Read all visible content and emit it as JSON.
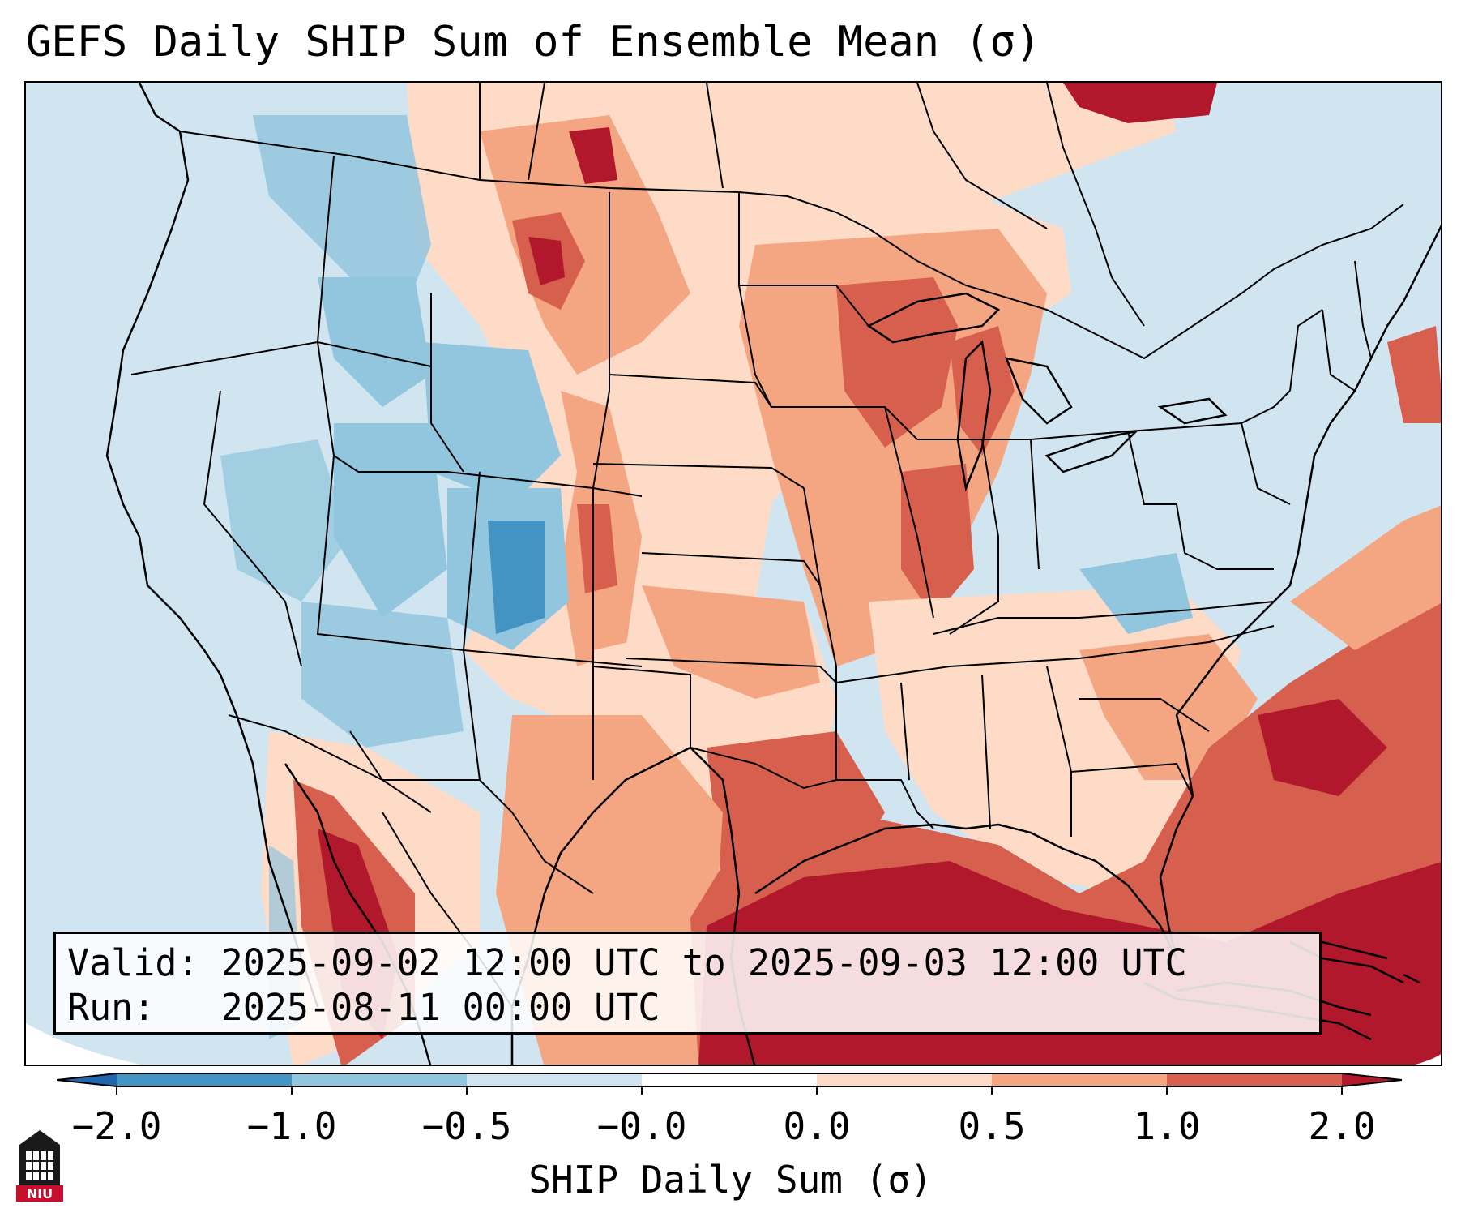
{
  "title": "GEFS Daily SHIP Sum of Ensemble Mean (σ)",
  "valid_label": "Valid:",
  "valid_value": "2025-09-02 12:00 UTC to 2025-09-03 12:00 UTC",
  "run_label": "Run:",
  "run_value": "2025-08-11 00:00 UTC",
  "colorbar": {
    "label": "SHIP Daily Sum (σ)",
    "ticks": [
      "−2.0",
      "−1.0",
      "−0.5",
      "−0.0",
      "0.0",
      "0.5",
      "1.0",
      "2.0"
    ],
    "bin_colors": [
      "#2166ac",
      "#4393c3",
      "#92c5de",
      "#d1e5f0",
      "#ffffff",
      "#fddbc7",
      "#f4a582",
      "#d6604d",
      "#b2182b"
    ],
    "extend": "both"
  },
  "logo_text": "NIU",
  "colors": {
    "ocean_default": "#d1e5f0",
    "strong_positive": "#b2182b",
    "positive": "#d6604d",
    "weak_positive": "#f4a582",
    "slight_positive": "#fddbc7",
    "slight_negative": "#d1e5f0",
    "weak_negative": "#92c5de",
    "negative": "#4393c3"
  }
}
